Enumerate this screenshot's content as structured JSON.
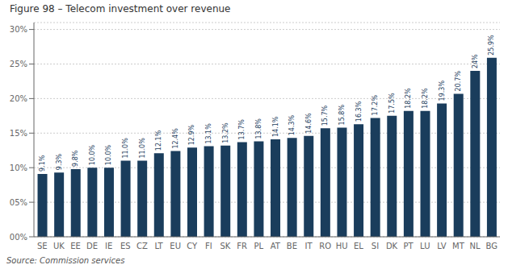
{
  "chart_data": {
    "type": "bar",
    "title": "Figure 98 – Telecom investment over revenue",
    "annotations": [
      "Source: Commission services"
    ],
    "categories": [
      "SE",
      "UK",
      "EE",
      "DE",
      "IE",
      "ES",
      "CZ",
      "LT",
      "EU",
      "CY",
      "FI",
      "SK",
      "FR",
      "PL",
      "AT",
      "BE",
      "IT",
      "RO",
      "HU",
      "EL",
      "SI",
      "DK",
      "PT",
      "LU",
      "LV",
      "MT",
      "NL",
      "BG"
    ],
    "values": [
      9.1,
      9.3,
      9.8,
      10.0,
      10.0,
      11.0,
      11.0,
      12.1,
      12.4,
      12.9,
      13.1,
      13.2,
      13.7,
      13.8,
      14.1,
      14.3,
      14.6,
      15.7,
      15.8,
      16.3,
      17.2,
      17.5,
      18.2,
      18.2,
      19.3,
      20.7,
      24.0,
      25.9
    ],
    "value_labels": [
      "9.1%",
      "9.3%",
      "9.8%",
      "10.0%",
      "10.0%",
      "11.0%",
      "11.0%",
      "12.1%",
      "12.4%",
      "12.9%",
      "13.1%",
      "13.2%",
      "13.7%",
      "13.8%",
      "14.1%",
      "14.3%",
      "14.6%",
      "15.7%",
      "15.8%",
      "16.3%",
      "17.2%",
      "17.5%",
      "18.2%",
      "18.2%",
      "19.3%",
      "20.7%",
      "24%",
      "25.9%"
    ],
    "data_labels": true,
    "color": "#1a3d5c",
    "ylim": [
      0,
      31
    ],
    "yticks": [
      {
        "value": 0,
        "label": "00%"
      },
      {
        "value": 5,
        "label": "05%"
      },
      {
        "value": 10,
        "label": "10%"
      },
      {
        "value": 15,
        "label": "15%"
      },
      {
        "value": 20,
        "label": "20%"
      },
      {
        "value": 25,
        "label": "25%"
      },
      {
        "value": 30,
        "label": "30%"
      }
    ],
    "grid": true
  }
}
